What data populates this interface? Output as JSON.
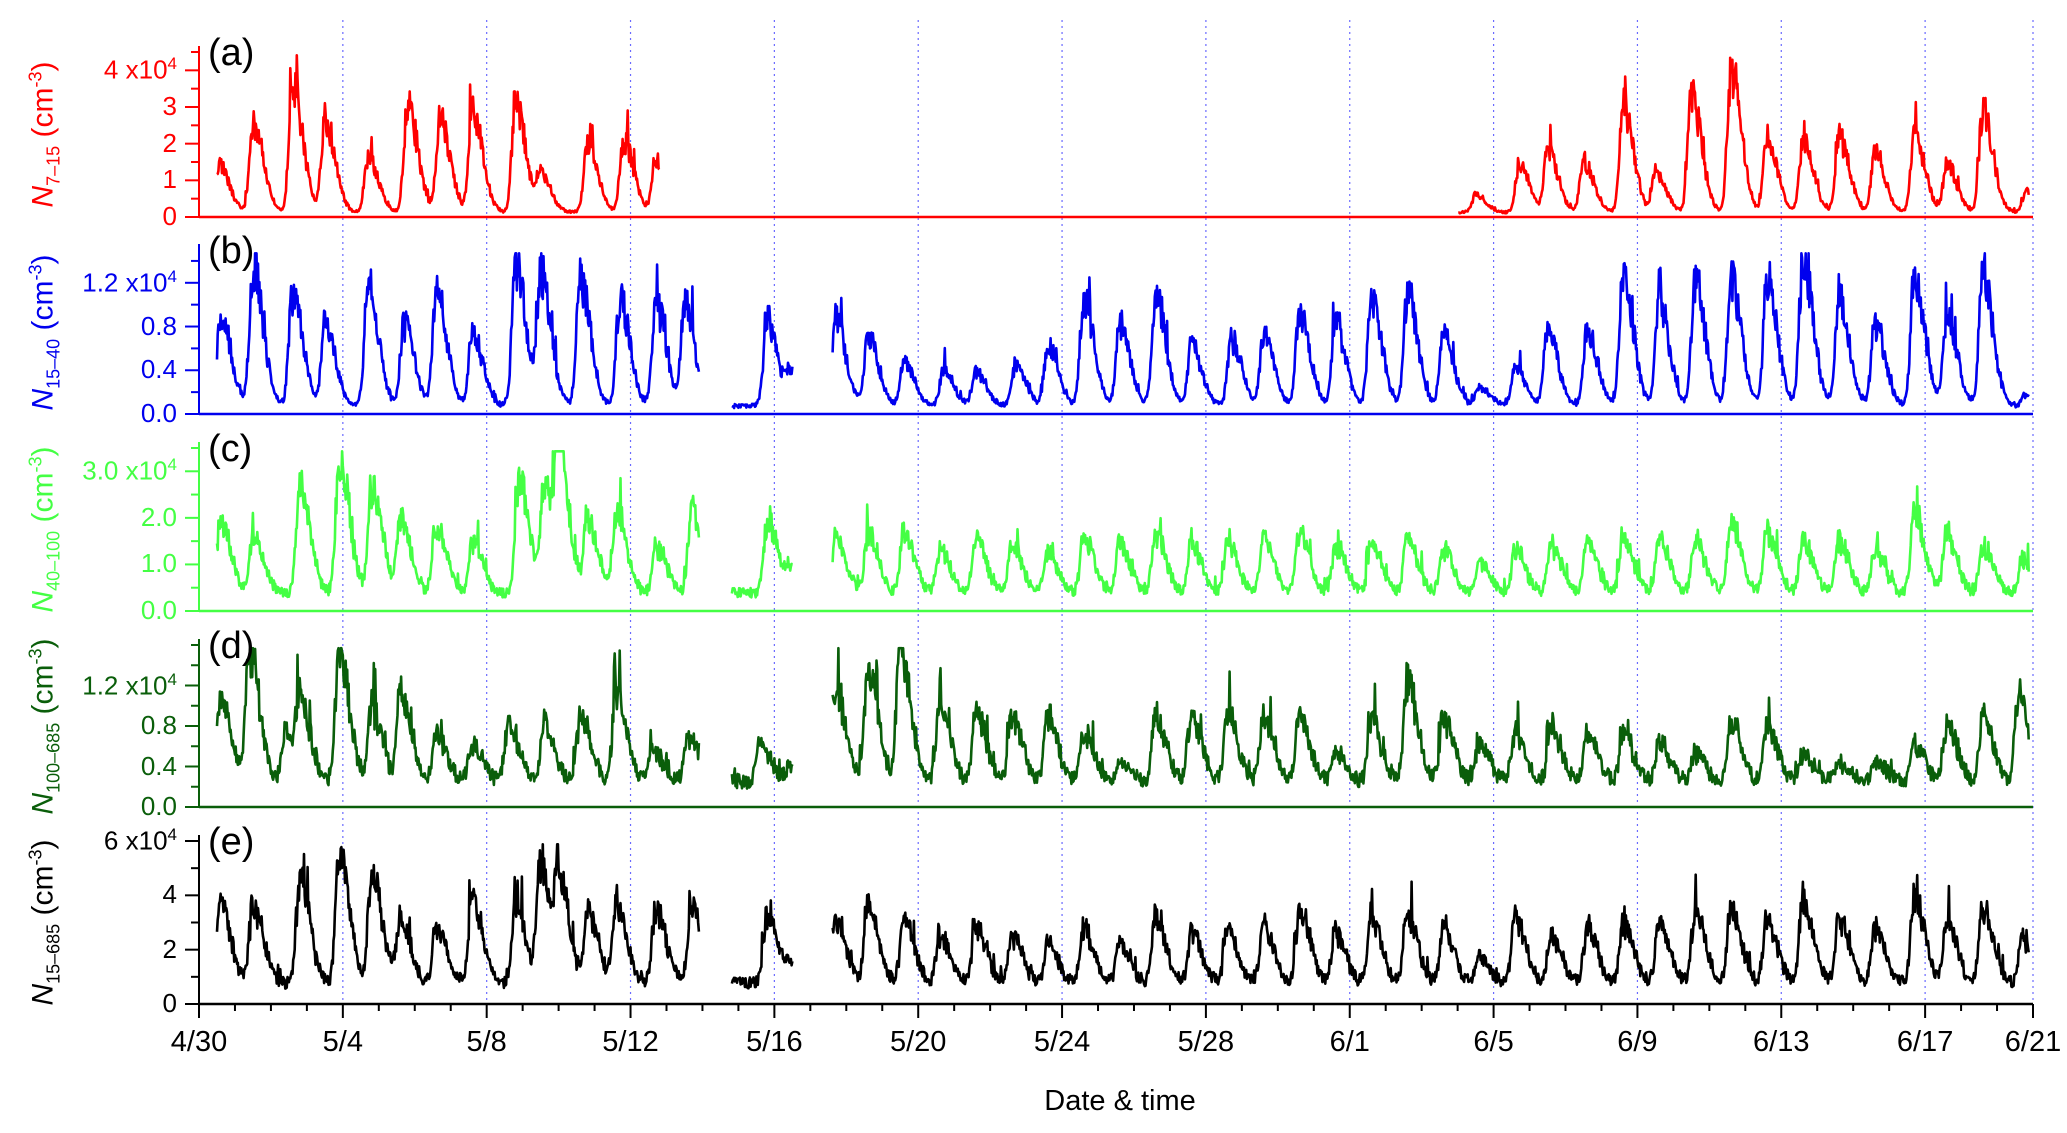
{
  "chart_data": [
    {
      "type": "line",
      "panel_label": "(a)",
      "ylabel": {
        "var": "N",
        "sub": "7–15",
        "unit": " (cm",
        "unit_exp": "-3",
        "unit_close": ")"
      },
      "color": "#ff0000",
      "ylim": [
        0,
        45000
      ],
      "y_ticks": [
        0,
        10000,
        20000,
        30000,
        40000
      ],
      "y_tick_labels": [
        {
          "main": "0"
        },
        {
          "main": "1"
        },
        {
          "main": "2"
        },
        {
          "main": "3"
        },
        {
          "main": "4 x10",
          "sup": "4"
        }
      ],
      "gaps": [
        [
          12.8,
          35.0
        ]
      ],
      "gap_zero_line": true,
      "baseline": 1500,
      "start_x": 0.5,
      "end_x": 50.9,
      "peaks": [
        {
          "x": 0.55,
          "y": 14000
        },
        {
          "x": 1.5,
          "y": 27000
        },
        {
          "x": 2.6,
          "y": 38000
        },
        {
          "x": 3.5,
          "y": 27000
        },
        {
          "x": 4.7,
          "y": 16000
        },
        {
          "x": 5.8,
          "y": 31000
        },
        {
          "x": 6.7,
          "y": 27000
        },
        {
          "x": 7.6,
          "y": 30000
        },
        {
          "x": 8.8,
          "y": 33000
        },
        {
          "x": 9.5,
          "y": 11000
        },
        {
          "x": 10.8,
          "y": 20000
        },
        {
          "x": 11.8,
          "y": 21000
        },
        {
          "x": 12.7,
          "y": 16000
        },
        {
          "x": 35.5,
          "y": 5000
        },
        {
          "x": 36.7,
          "y": 14000
        },
        {
          "x": 37.5,
          "y": 18000
        },
        {
          "x": 38.5,
          "y": 15000
        },
        {
          "x": 39.6,
          "y": 31000
        },
        {
          "x": 40.5,
          "y": 12000
        },
        {
          "x": 41.5,
          "y": 34000
        },
        {
          "x": 42.6,
          "y": 42000
        },
        {
          "x": 43.6,
          "y": 22000
        },
        {
          "x": 44.6,
          "y": 21000
        },
        {
          "x": 45.6,
          "y": 22000
        },
        {
          "x": 46.6,
          "y": 17000
        },
        {
          "x": 47.7,
          "y": 23000
        },
        {
          "x": 48.6,
          "y": 14000
        },
        {
          "x": 49.6,
          "y": 30000
        },
        {
          "x": 50.8,
          "y": 6000
        }
      ]
    },
    {
      "type": "line",
      "panel_label": "(b)",
      "ylabel": {
        "var": "N",
        "sub": "15–40",
        "unit": " (cm",
        "unit_exp": "-3",
        "unit_close": ")"
      },
      "color": "#0000ee",
      "ylim": [
        0,
        15000
      ],
      "y_ticks": [
        0,
        4000,
        8000,
        12000
      ],
      "y_tick_labels": [
        {
          "main": "0.0"
        },
        {
          "main": "0.4"
        },
        {
          "main": "0.8"
        },
        {
          "main": "1.2 x10",
          "sup": "4"
        }
      ],
      "gaps": [
        [
          13.9,
          14.8
        ],
        [
          16.5,
          17.6
        ]
      ],
      "baseline": 900,
      "start_x": 0.5,
      "end_x": 50.9,
      "peaks": [
        {
          "x": 0.6,
          "y": 9000
        },
        {
          "x": 1.5,
          "y": 13500
        },
        {
          "x": 2.6,
          "y": 11000
        },
        {
          "x": 3.5,
          "y": 8000
        },
        {
          "x": 4.7,
          "y": 12000
        },
        {
          "x": 5.7,
          "y": 8000
        },
        {
          "x": 6.6,
          "y": 11500
        },
        {
          "x": 7.6,
          "y": 7500
        },
        {
          "x": 8.8,
          "y": 14000
        },
        {
          "x": 9.5,
          "y": 12500
        },
        {
          "x": 10.6,
          "y": 12500
        },
        {
          "x": 11.7,
          "y": 10500
        },
        {
          "x": 12.7,
          "y": 10000
        },
        {
          "x": 13.5,
          "y": 10000
        },
        {
          "x": 15.8,
          "y": 8500
        },
        {
          "x": 16.4,
          "y": 3000
        },
        {
          "x": 17.7,
          "y": 8500
        },
        {
          "x": 18.6,
          "y": 7000
        },
        {
          "x": 19.6,
          "y": 4500
        },
        {
          "x": 20.7,
          "y": 3500
        },
        {
          "x": 21.6,
          "y": 3500
        },
        {
          "x": 22.7,
          "y": 4000
        },
        {
          "x": 23.6,
          "y": 6000
        },
        {
          "x": 24.6,
          "y": 10500
        },
        {
          "x": 25.6,
          "y": 8000
        },
        {
          "x": 26.6,
          "y": 11000
        },
        {
          "x": 27.6,
          "y": 6000
        },
        {
          "x": 28.7,
          "y": 6500
        },
        {
          "x": 29.6,
          "y": 7000
        },
        {
          "x": 30.6,
          "y": 9000
        },
        {
          "x": 31.6,
          "y": 8000
        },
        {
          "x": 32.6,
          "y": 10500
        },
        {
          "x": 33.6,
          "y": 11000
        },
        {
          "x": 34.6,
          "y": 7000
        },
        {
          "x": 35.6,
          "y": 1800
        },
        {
          "x": 36.6,
          "y": 4000
        },
        {
          "x": 37.5,
          "y": 7500
        },
        {
          "x": 38.6,
          "y": 7500
        },
        {
          "x": 39.6,
          "y": 13000
        },
        {
          "x": 40.6,
          "y": 10000
        },
        {
          "x": 41.6,
          "y": 12500
        },
        {
          "x": 42.6,
          "y": 12500
        },
        {
          "x": 43.6,
          "y": 12500
        },
        {
          "x": 44.6,
          "y": 14500
        },
        {
          "x": 45.6,
          "y": 11000
        },
        {
          "x": 46.6,
          "y": 8000
        },
        {
          "x": 47.7,
          "y": 13000
        },
        {
          "x": 48.6,
          "y": 9000
        },
        {
          "x": 49.6,
          "y": 13000
        },
        {
          "x": 50.8,
          "y": 1200
        }
      ]
    },
    {
      "type": "line",
      "panel_label": "(c)",
      "ylabel": {
        "var": "N",
        "sub": "40–100",
        "unit": " (cm",
        "unit_exp": "-3",
        "unit_close": ")"
      },
      "color": "#44ff44",
      "ylim": [
        0,
        35000
      ],
      "y_ticks": [
        0,
        10000,
        20000,
        30000
      ],
      "y_tick_labels": [
        {
          "main": "0.0"
        },
        {
          "main": "1.0"
        },
        {
          "main": "2.0"
        },
        {
          "main": "3.0 x10",
          "sup": "4"
        }
      ],
      "gaps": [
        [
          13.9,
          14.8
        ],
        [
          16.5,
          17.6
        ]
      ],
      "baseline": 4500,
      "start_x": 0.5,
      "end_x": 50.9,
      "peaks": [
        {
          "x": 0.6,
          "y": 16000
        },
        {
          "x": 1.5,
          "y": 13000
        },
        {
          "x": 2.8,
          "y": 25000
        },
        {
          "x": 3.9,
          "y": 31000
        },
        {
          "x": 4.8,
          "y": 24000
        },
        {
          "x": 5.6,
          "y": 17000
        },
        {
          "x": 6.6,
          "y": 15000
        },
        {
          "x": 7.6,
          "y": 12000
        },
        {
          "x": 8.9,
          "y": 27000
        },
        {
          "x": 9.6,
          "y": 24000
        },
        {
          "x": 10.0,
          "y": 32000
        },
        {
          "x": 10.8,
          "y": 17000
        },
        {
          "x": 11.6,
          "y": 19000
        },
        {
          "x": 12.7,
          "y": 11000
        },
        {
          "x": 13.7,
          "y": 19000
        },
        {
          "x": 15.8,
          "y": 17000
        },
        {
          "x": 16.4,
          "y": 5000
        },
        {
          "x": 17.7,
          "y": 13000
        },
        {
          "x": 18.6,
          "y": 14000
        },
        {
          "x": 19.6,
          "y": 14000
        },
        {
          "x": 20.6,
          "y": 10000
        },
        {
          "x": 21.6,
          "y": 12000
        },
        {
          "x": 22.6,
          "y": 11000
        },
        {
          "x": 23.6,
          "y": 9000
        },
        {
          "x": 24.6,
          "y": 13000
        },
        {
          "x": 25.6,
          "y": 12000
        },
        {
          "x": 26.6,
          "y": 14000
        },
        {
          "x": 27.6,
          "y": 12000
        },
        {
          "x": 28.6,
          "y": 12000
        },
        {
          "x": 29.6,
          "y": 12000
        },
        {
          "x": 30.6,
          "y": 14000
        },
        {
          "x": 31.6,
          "y": 11000
        },
        {
          "x": 32.6,
          "y": 12000
        },
        {
          "x": 33.6,
          "y": 13000
        },
        {
          "x": 34.6,
          "y": 10000
        },
        {
          "x": 35.6,
          "y": 7000
        },
        {
          "x": 36.6,
          "y": 10000
        },
        {
          "x": 37.6,
          "y": 11000
        },
        {
          "x": 38.6,
          "y": 12000
        },
        {
          "x": 39.6,
          "y": 13000
        },
        {
          "x": 40.6,
          "y": 13000
        },
        {
          "x": 41.6,
          "y": 12000
        },
        {
          "x": 42.6,
          "y": 16000
        },
        {
          "x": 43.6,
          "y": 14000
        },
        {
          "x": 44.6,
          "y": 12000
        },
        {
          "x": 45.6,
          "y": 12000
        },
        {
          "x": 46.6,
          "y": 10000
        },
        {
          "x": 47.7,
          "y": 19000
        },
        {
          "x": 48.6,
          "y": 14000
        },
        {
          "x": 49.6,
          "y": 11000
        },
        {
          "x": 50.7,
          "y": 8000
        }
      ]
    },
    {
      "type": "line",
      "panel_label": "(d)",
      "ylabel": {
        "var": "N",
        "sub": "100–685",
        "unit": " (cm",
        "unit_exp": "-3",
        "unit_close": ")"
      },
      "color": "#0a5e0a",
      "ylim": [
        0,
        16000
      ],
      "y_ticks": [
        0,
        4000,
        8000,
        12000
      ],
      "y_tick_labels": [
        {
          "main": "0.0"
        },
        {
          "main": "0.4"
        },
        {
          "main": "0.8"
        },
        {
          "main": "1.2 x10",
          "sup": "4"
        }
      ],
      "gaps": [
        [
          13.9,
          14.8
        ],
        [
          16.5,
          17.6
        ]
      ],
      "baseline": 3000,
      "start_x": 0.5,
      "end_x": 50.9,
      "peaks": [
        {
          "x": 0.6,
          "y": 8500
        },
        {
          "x": 1.4,
          "y": 13500
        },
        {
          "x": 2.4,
          "y": 5000
        },
        {
          "x": 2.8,
          "y": 8000
        },
        {
          "x": 3.9,
          "y": 14000
        },
        {
          "x": 4.8,
          "y": 8000
        },
        {
          "x": 5.6,
          "y": 9000
        },
        {
          "x": 6.6,
          "y": 5000
        },
        {
          "x": 7.6,
          "y": 4000
        },
        {
          "x": 8.6,
          "y": 6000
        },
        {
          "x": 9.6,
          "y": 6000
        },
        {
          "x": 10.6,
          "y": 7000
        },
        {
          "x": 11.6,
          "y": 9500
        },
        {
          "x": 12.6,
          "y": 3500
        },
        {
          "x": 13.6,
          "y": 5000
        },
        {
          "x": 15.6,
          "y": 4000
        },
        {
          "x": 16.4,
          "y": 1500
        },
        {
          "x": 17.7,
          "y": 10000
        },
        {
          "x": 18.6,
          "y": 12000
        },
        {
          "x": 19.5,
          "y": 15000
        },
        {
          "x": 20.6,
          "y": 8000
        },
        {
          "x": 21.6,
          "y": 7000
        },
        {
          "x": 22.6,
          "y": 7000
        },
        {
          "x": 23.6,
          "y": 7000
        },
        {
          "x": 24.6,
          "y": 5000
        },
        {
          "x": 25.6,
          "y": 2000
        },
        {
          "x": 26.6,
          "y": 7000
        },
        {
          "x": 27.6,
          "y": 7000
        },
        {
          "x": 28.6,
          "y": 7000
        },
        {
          "x": 29.6,
          "y": 6500
        },
        {
          "x": 30.6,
          "y": 7000
        },
        {
          "x": 31.6,
          "y": 3000
        },
        {
          "x": 32.6,
          "y": 6500
        },
        {
          "x": 33.6,
          "y": 10500
        },
        {
          "x": 34.6,
          "y": 7000
        },
        {
          "x": 35.6,
          "y": 4000
        },
        {
          "x": 36.6,
          "y": 5000
        },
        {
          "x": 37.6,
          "y": 6000
        },
        {
          "x": 38.6,
          "y": 5000
        },
        {
          "x": 39.6,
          "y": 5000
        },
        {
          "x": 40.6,
          "y": 4000
        },
        {
          "x": 41.6,
          "y": 3000
        },
        {
          "x": 42.6,
          "y": 6000
        },
        {
          "x": 43.6,
          "y": 6000
        },
        {
          "x": 44.6,
          "y": 3000
        },
        {
          "x": 45.6,
          "y": 2000
        },
        {
          "x": 46.6,
          "y": 2000
        },
        {
          "x": 47.7,
          "y": 4000
        },
        {
          "x": 48.6,
          "y": 6000
        },
        {
          "x": 49.6,
          "y": 7000
        },
        {
          "x": 50.6,
          "y": 9000
        }
      ]
    },
    {
      "type": "line",
      "panel_label": "(e)",
      "ylabel": {
        "var": "N",
        "sub": "15–685",
        "unit": " (cm",
        "unit_exp": "-3",
        "unit_close": ")"
      },
      "color": "#000000",
      "ylim": [
        0,
        60000
      ],
      "y_ticks": [
        0,
        20000,
        40000,
        60000
      ],
      "y_tick_labels": [
        {
          "main": "0"
        },
        {
          "main": "2"
        },
        {
          "main": "4"
        },
        {
          "main": "6 x10",
          "sup": "4"
        }
      ],
      "gaps": [
        [
          13.9,
          14.8
        ],
        [
          16.5,
          17.6
        ]
      ],
      "baseline": 9000,
      "start_x": 0.5,
      "end_x": 50.9,
      "peaks": [
        {
          "x": 0.6,
          "y": 32000
        },
        {
          "x": 1.5,
          "y": 31000
        },
        {
          "x": 2.8,
          "y": 40000
        },
        {
          "x": 3.9,
          "y": 50000
        },
        {
          "x": 4.8,
          "y": 45000
        },
        {
          "x": 5.6,
          "y": 25000
        },
        {
          "x": 6.6,
          "y": 23000
        },
        {
          "x": 7.6,
          "y": 35000
        },
        {
          "x": 8.8,
          "y": 30000
        },
        {
          "x": 9.5,
          "y": 48000
        },
        {
          "x": 10.0,
          "y": 41000
        },
        {
          "x": 10.8,
          "y": 30000
        },
        {
          "x": 11.6,
          "y": 32000
        },
        {
          "x": 12.7,
          "y": 29000
        },
        {
          "x": 13.7,
          "y": 30000
        },
        {
          "x": 15.8,
          "y": 28000
        },
        {
          "x": 16.4,
          "y": 7000
        },
        {
          "x": 17.7,
          "y": 26000
        },
        {
          "x": 18.6,
          "y": 31000
        },
        {
          "x": 19.6,
          "y": 26000
        },
        {
          "x": 20.6,
          "y": 19000
        },
        {
          "x": 21.6,
          "y": 24000
        },
        {
          "x": 22.6,
          "y": 19000
        },
        {
          "x": 23.6,
          "y": 16000
        },
        {
          "x": 24.6,
          "y": 21000
        },
        {
          "x": 25.6,
          "y": 16000
        },
        {
          "x": 26.6,
          "y": 27000
        },
        {
          "x": 27.6,
          "y": 21000
        },
        {
          "x": 28.6,
          "y": 21000
        },
        {
          "x": 29.6,
          "y": 23000
        },
        {
          "x": 30.6,
          "y": 29000
        },
        {
          "x": 31.6,
          "y": 21000
        },
        {
          "x": 32.6,
          "y": 26000
        },
        {
          "x": 33.6,
          "y": 27000
        },
        {
          "x": 34.6,
          "y": 22000
        },
        {
          "x": 35.6,
          "y": 11000
        },
        {
          "x": 36.6,
          "y": 26000
        },
        {
          "x": 37.6,
          "y": 19000
        },
        {
          "x": 38.6,
          "y": 22000
        },
        {
          "x": 39.6,
          "y": 24000
        },
        {
          "x": 40.6,
          "y": 24000
        },
        {
          "x": 41.6,
          "y": 28000
        },
        {
          "x": 42.6,
          "y": 30000
        },
        {
          "x": 43.6,
          "y": 26000
        },
        {
          "x": 44.6,
          "y": 34000
        },
        {
          "x": 45.6,
          "y": 25000
        },
        {
          "x": 46.6,
          "y": 22000
        },
        {
          "x": 47.7,
          "y": 33000
        },
        {
          "x": 48.6,
          "y": 24000
        },
        {
          "x": 49.6,
          "y": 30000
        },
        {
          "x": 50.7,
          "y": 18000
        }
      ]
    }
  ],
  "x_axis": {
    "xlabel": "Date & time",
    "xlim": [
      0,
      51
    ],
    "tick_labels": [
      "4/30",
      "5/4",
      "5/8",
      "5/12",
      "5/16",
      "5/20",
      "5/24",
      "5/28",
      "6/1",
      "6/5",
      "6/9",
      "6/13",
      "6/17",
      "6/21"
    ],
    "tick_days": [
      0,
      4,
      8,
      12,
      16,
      20,
      24,
      28,
      32,
      36,
      40,
      44,
      48,
      51
    ],
    "minor_tick_step_days": 1,
    "vertical_guides": "dotted blue at each labeled date"
  },
  "colors": {
    "guide": "#6a6aff",
    "axis": "#000000"
  }
}
